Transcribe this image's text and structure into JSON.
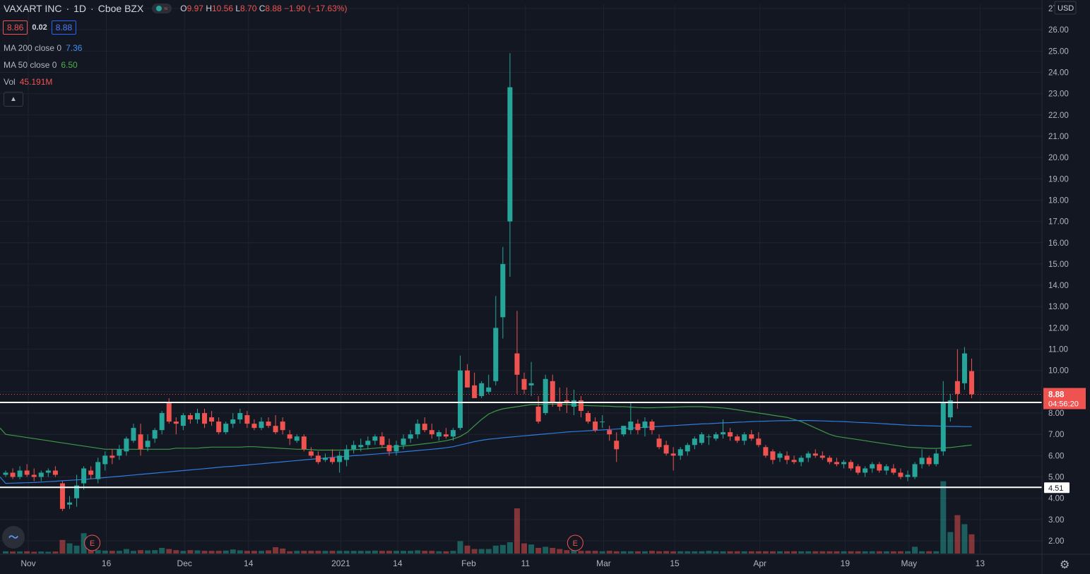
{
  "header": {
    "symbol": "VAXART INC",
    "interval": "1D",
    "exchange": "Cboe BZX",
    "open_label": "O",
    "open": "9.97",
    "high_label": "H",
    "high": "10.56",
    "low_label": "L",
    "low": "8.70",
    "close_label": "C",
    "close": "8.88",
    "change": "−1.90 (−17.63%)"
  },
  "quote": {
    "bid": "8.86",
    "spread": "0.02",
    "ask": "8.88"
  },
  "indicators": [
    {
      "label": "MA 200 close 0",
      "value": "7.36",
      "color": "#3b8ef0"
    },
    {
      "label": "MA 50 close 0",
      "value": "6.50",
      "color": "#4caf50"
    },
    {
      "label": "Vol",
      "value": "45.191M",
      "color": "#ef5350"
    }
  ],
  "colors": {
    "up": "#26a69a",
    "down": "#ef5350",
    "bg": "#131722",
    "grid": "#1f2330",
    "ma200": "#2f7ce0",
    "ma50": "#3d9a45"
  },
  "chart_data": {
    "type": "candlestick",
    "currency": "USD",
    "ylim": [
      1.5,
      27
    ],
    "y_ticks": [
      "2.00",
      "3.00",
      "4.00",
      "5.00",
      "6.00",
      "7.00",
      "8.00",
      "9.00",
      "10.00",
      "11.00",
      "12.00",
      "13.00",
      "14.00",
      "15.00",
      "16.00",
      "17.00",
      "18.00",
      "19.00",
      "20.00",
      "21.00",
      "22.00",
      "23.00",
      "24.00",
      "25.00",
      "26.00",
      "27"
    ],
    "x_ticks": [
      {
        "label": "Nov",
        "t": 0
      },
      {
        "label": "16",
        "t": 11
      },
      {
        "label": "Dec",
        "t": 22
      },
      {
        "label": "14",
        "t": 31
      },
      {
        "label": "2021",
        "t": 44
      },
      {
        "label": "14",
        "t": 52
      },
      {
        "label": "Feb",
        "t": 62
      },
      {
        "label": "11",
        "t": 70
      },
      {
        "label": "Mar",
        "t": 81
      },
      {
        "label": "15",
        "t": 91
      },
      {
        "label": "Apr",
        "t": 103
      },
      {
        "label": "19",
        "t": 115
      },
      {
        "label": "May",
        "t": 124
      },
      {
        "label": "13",
        "t": 134
      }
    ],
    "last_price": "8.88",
    "countdown": "04:56:20",
    "horizontal_levels": [
      "8.50",
      "4.51"
    ],
    "earnings_markers": [
      {
        "label": "E",
        "t": 11
      },
      {
        "label": "E",
        "t": 79
      }
    ],
    "candles": [
      [
        5.1,
        5.3,
        5.0,
        5.2
      ],
      [
        5.2,
        5.4,
        4.9,
        5.0
      ],
      [
        5.0,
        5.5,
        4.9,
        5.3
      ],
      [
        5.3,
        5.6,
        5.0,
        5.1
      ],
      [
        5.1,
        5.4,
        4.8,
        5.0
      ],
      [
        5.0,
        5.3,
        4.8,
        5.2
      ],
      [
        5.2,
        5.4,
        5.0,
        5.3
      ],
      [
        5.3,
        5.5,
        5.0,
        5.1
      ],
      [
        4.7,
        4.8,
        3.4,
        3.5
      ],
      [
        3.7,
        4.1,
        3.5,
        3.8
      ],
      [
        4.0,
        5.1,
        3.6,
        4.6
      ],
      [
        4.7,
        5.5,
        4.4,
        5.4
      ],
      [
        5.3,
        5.5,
        4.9,
        5.1
      ],
      [
        4.9,
        5.9,
        4.7,
        5.7
      ],
      [
        5.6,
        6.2,
        5.3,
        6.0
      ],
      [
        6.0,
        6.3,
        5.6,
        5.9
      ],
      [
        6.0,
        6.5,
        5.8,
        6.3
      ],
      [
        6.2,
        6.9,
        6.0,
        6.8
      ],
      [
        6.7,
        7.5,
        6.6,
        7.3
      ],
      [
        7.0,
        7.5,
        6.0,
        6.3
      ],
      [
        6.4,
        7.0,
        6.2,
        6.7
      ],
      [
        6.8,
        7.3,
        6.6,
        7.2
      ],
      [
        7.2,
        8.1,
        7.0,
        8.0
      ],
      [
        8.5,
        8.7,
        7.5,
        7.6
      ],
      [
        7.6,
        7.8,
        7.0,
        7.5
      ],
      [
        7.4,
        8.0,
        7.2,
        7.9
      ],
      [
        7.9,
        8.0,
        7.5,
        7.7
      ],
      [
        7.7,
        8.2,
        7.5,
        8.0
      ],
      [
        8.0,
        8.2,
        7.3,
        7.5
      ],
      [
        7.8,
        8.1,
        7.4,
        7.6
      ],
      [
        7.6,
        7.8,
        7.0,
        7.1
      ],
      [
        7.1,
        7.6,
        7.0,
        7.5
      ],
      [
        7.5,
        8.0,
        7.3,
        7.7
      ],
      [
        7.7,
        8.2,
        7.5,
        8.0
      ],
      [
        7.9,
        8.1,
        7.3,
        7.5
      ],
      [
        7.5,
        7.7,
        7.2,
        7.3
      ],
      [
        7.3,
        7.8,
        7.2,
        7.6
      ],
      [
        7.6,
        7.8,
        7.3,
        7.4
      ],
      [
        7.4,
        7.9,
        7.0,
        7.1
      ],
      [
        7.6,
        7.8,
        7.0,
        7.2
      ],
      [
        7.0,
        7.2,
        6.5,
        6.8
      ],
      [
        6.7,
        7.0,
        6.6,
        6.9
      ],
      [
        6.9,
        7.0,
        6.2,
        6.3
      ],
      [
        6.2,
        6.4,
        5.9,
        6.0
      ],
      [
        6.0,
        6.2,
        5.6,
        5.7
      ],
      [
        5.8,
        6.1,
        5.7,
        5.9
      ],
      [
        5.9,
        6.3,
        5.6,
        5.7
      ],
      [
        5.7,
        6.2,
        5.2,
        6.0
      ],
      [
        5.8,
        6.5,
        5.5,
        6.3
      ],
      [
        6.3,
        6.7,
        6.1,
        6.5
      ],
      [
        6.4,
        6.8,
        6.2,
        6.5
      ],
      [
        6.5,
        6.9,
        6.3,
        6.7
      ],
      [
        6.7,
        7.0,
        6.5,
        6.9
      ],
      [
        6.9,
        7.1,
        6.4,
        6.5
      ],
      [
        6.5,
        6.8,
        6.0,
        6.2
      ],
      [
        6.2,
        6.7,
        6.0,
        6.5
      ],
      [
        6.5,
        7.0,
        6.3,
        6.8
      ],
      [
        6.8,
        7.2,
        6.6,
        7.0
      ],
      [
        7.0,
        7.7,
        6.8,
        7.5
      ],
      [
        7.5,
        7.8,
        7.1,
        7.2
      ],
      [
        7.2,
        7.5,
        6.8,
        7.0
      ],
      [
        6.9,
        7.2,
        6.7,
        7.1
      ],
      [
        7.0,
        7.3,
        6.8,
        6.9
      ],
      [
        6.9,
        7.3,
        6.7,
        7.2
      ],
      [
        7.3,
        10.7,
        7.2,
        10.0
      ],
      [
        10.0,
        10.3,
        9.2,
        9.2
      ],
      [
        9.3,
        9.9,
        8.8,
        8.7
      ],
      [
        8.8,
        9.5,
        8.7,
        9.4
      ],
      [
        9.0,
        9.8,
        8.9,
        9.2
      ],
      [
        9.5,
        13.5,
        9.3,
        12.0
      ],
      [
        12.5,
        15.8,
        11.5,
        15.0
      ],
      [
        17.0,
        24.9,
        14.4,
        23.3
      ],
      [
        10.8,
        12.8,
        8.9,
        9.8
      ],
      [
        9.6,
        9.9,
        8.9,
        9.1
      ],
      [
        9.3,
        10.4,
        8.8,
        9.4
      ],
      [
        8.3,
        8.8,
        7.5,
        7.6
      ],
      [
        8.0,
        9.8,
        7.9,
        9.6
      ],
      [
        9.5,
        9.8,
        8.3,
        8.5
      ],
      [
        8.5,
        9.2,
        8.1,
        8.3
      ],
      [
        8.6,
        9.2,
        8.0,
        8.5
      ],
      [
        8.3,
        9.1,
        7.9,
        8.6
      ],
      [
        8.6,
        8.8,
        7.8,
        8.1
      ],
      [
        8.0,
        8.1,
        7.5,
        7.6
      ],
      [
        7.6,
        7.8,
        7.1,
        7.2
      ],
      [
        7.6,
        7.9,
        7.3,
        7.6
      ],
      [
        7.2,
        7.4,
        6.7,
        7.0
      ],
      [
        6.7,
        7.1,
        5.7,
        6.3
      ],
      [
        7.0,
        7.4,
        6.9,
        7.4
      ],
      [
        7.2,
        8.5,
        7.0,
        7.6
      ],
      [
        7.5,
        7.7,
        7.0,
        7.2
      ],
      [
        7.3,
        7.8,
        6.9,
        7.6
      ],
      [
        7.6,
        7.7,
        7.0,
        7.2
      ],
      [
        6.8,
        7.0,
        6.3,
        6.4
      ],
      [
        6.5,
        6.7,
        6.0,
        6.1
      ],
      [
        6.1,
        6.4,
        5.3,
        6.0
      ],
      [
        6.0,
        6.4,
        5.8,
        6.3
      ],
      [
        6.2,
        6.6,
        6.0,
        6.5
      ],
      [
        6.5,
        6.9,
        6.3,
        6.8
      ],
      [
        6.6,
        7.1,
        6.5,
        7.0
      ],
      [
        6.9,
        7.0,
        6.5,
        6.9
      ],
      [
        6.8,
        7.1,
        6.7,
        7.0
      ],
      [
        7.0,
        7.7,
        6.8,
        7.1
      ],
      [
        7.1,
        7.3,
        6.7,
        6.9
      ],
      [
        6.9,
        7.0,
        6.6,
        6.7
      ],
      [
        6.7,
        7.1,
        6.5,
        7.0
      ],
      [
        7.0,
        7.2,
        6.7,
        6.8
      ],
      [
        6.8,
        7.1,
        6.4,
        6.5
      ],
      [
        6.4,
        6.5,
        5.9,
        6.0
      ],
      [
        6.2,
        6.3,
        5.6,
        5.8
      ],
      [
        5.9,
        6.2,
        5.7,
        6.1
      ],
      [
        6.0,
        6.2,
        5.6,
        5.8
      ],
      [
        5.8,
        6.0,
        5.6,
        5.7
      ],
      [
        5.7,
        6.0,
        5.5,
        5.9
      ],
      [
        5.9,
        6.2,
        5.7,
        6.1
      ],
      [
        6.1,
        6.3,
        5.9,
        6.0
      ],
      [
        6.0,
        6.2,
        5.8,
        5.9
      ],
      [
        5.9,
        6.0,
        5.6,
        5.7
      ],
      [
        5.7,
        5.9,
        5.5,
        5.6
      ],
      [
        5.6,
        5.8,
        5.4,
        5.7
      ],
      [
        5.7,
        5.8,
        5.3,
        5.4
      ],
      [
        5.5,
        5.6,
        5.1,
        5.2
      ],
      [
        5.2,
        5.5,
        5.0,
        5.4
      ],
      [
        5.4,
        5.7,
        5.2,
        5.6
      ],
      [
        5.6,
        5.7,
        5.2,
        5.3
      ],
      [
        5.3,
        5.6,
        5.1,
        5.5
      ],
      [
        5.4,
        5.6,
        5.1,
        5.2
      ],
      [
        5.2,
        5.4,
        4.9,
        5.0
      ],
      [
        5.0,
        5.3,
        4.8,
        5.1
      ],
      [
        5.0,
        5.7,
        4.9,
        5.6
      ],
      [
        5.6,
        6.3,
        5.4,
        5.9
      ],
      [
        5.9,
        6.0,
        5.5,
        5.6
      ],
      [
        5.6,
        6.3,
        5.5,
        6.1
      ],
      [
        6.2,
        9.5,
        6.0,
        8.5
      ],
      [
        7.8,
        8.9,
        7.6,
        8.6
      ],
      [
        9.5,
        11.0,
        8.2,
        8.9
      ],
      [
        9.4,
        11.1,
        9.1,
        10.8
      ],
      [
        9.97,
        10.56,
        8.7,
        8.88
      ]
    ],
    "volume_rel": [
      0.1,
      0.09,
      0.09,
      0.1,
      0.08,
      0.09,
      0.08,
      0.09,
      0.6,
      0.45,
      0.35,
      0.9,
      0.25,
      0.15,
      0.13,
      0.12,
      0.12,
      0.2,
      0.12,
      0.15,
      0.14,
      0.15,
      0.25,
      0.2,
      0.15,
      0.12,
      0.15,
      0.14,
      0.12,
      0.12,
      0.12,
      0.13,
      0.18,
      0.14,
      0.12,
      0.12,
      0.12,
      0.14,
      0.28,
      0.22,
      0.1,
      0.12,
      0.12,
      0.12,
      0.12,
      0.12,
      0.12,
      0.12,
      0.12,
      0.12,
      0.12,
      0.12,
      0.13,
      0.12,
      0.12,
      0.12,
      0.12,
      0.12,
      0.14,
      0.12,
      0.12,
      0.1,
      0.1,
      0.12,
      0.55,
      0.35,
      0.2,
      0.2,
      0.2,
      0.35,
      0.38,
      0.5,
      2.0,
      0.45,
      0.4,
      0.25,
      0.3,
      0.25,
      0.2,
      0.15,
      0.15,
      0.12,
      0.12,
      0.12,
      0.1,
      0.12,
      0.1,
      0.1,
      0.1,
      0.1,
      0.1,
      0.12,
      0.1,
      0.11,
      0.1,
      0.1,
      0.1,
      0.1,
      0.1,
      0.12,
      0.1,
      0.1,
      0.1,
      0.1,
      0.1,
      0.1,
      0.1,
      0.1,
      0.1,
      0.1,
      0.1,
      0.1,
      0.1,
      0.1,
      0.1,
      0.1,
      0.1,
      0.1,
      0.1,
      0.1,
      0.1,
      0.1,
      0.1,
      0.1,
      0.1,
      0.1,
      0.1,
      0.1,
      0.3,
      0.1,
      0.1,
      0.1,
      3.2,
      0.95,
      1.7,
      1.3,
      0.85
    ],
    "ma50": [
      7.0,
      6.95,
      6.9,
      6.85,
      6.8,
      6.75,
      6.7,
      6.65,
      6.6,
      6.55,
      6.5,
      6.45,
      6.4,
      6.35,
      6.3,
      6.3,
      6.3,
      6.3,
      6.3,
      6.3,
      6.3,
      6.3,
      6.3,
      6.3,
      6.35,
      6.35,
      6.35,
      6.35,
      6.38,
      6.4,
      6.4,
      6.4,
      6.4,
      6.4,
      6.42,
      6.42,
      6.4,
      6.38,
      6.36,
      6.34,
      6.32,
      6.3,
      6.3,
      6.28,
      6.26,
      6.26,
      6.26,
      6.26,
      6.26,
      6.28,
      6.3,
      6.32,
      6.35,
      6.38,
      6.4,
      6.42,
      6.45,
      6.48,
      6.52,
      6.56,
      6.6,
      6.65,
      6.7,
      6.78,
      6.9,
      7.1,
      7.4,
      7.7,
      7.95,
      8.1,
      8.2,
      8.25,
      8.3,
      8.35,
      8.4,
      8.4,
      8.42,
      8.42,
      8.42,
      8.4,
      8.38,
      8.36,
      8.35,
      8.34,
      8.33,
      8.32,
      8.3,
      8.3,
      8.28,
      8.26,
      8.25,
      8.25,
      8.26,
      8.27,
      8.28,
      8.29,
      8.3,
      8.3,
      8.3,
      8.28,
      8.26,
      8.24,
      8.2,
      8.15,
      8.1,
      8.05,
      8.0,
      7.95,
      7.9,
      7.85,
      7.8,
      7.7,
      7.6,
      7.45,
      7.3,
      7.15,
      7.0,
      6.9,
      6.85,
      6.8,
      6.75,
      6.7,
      6.65,
      6.6,
      6.55,
      6.5,
      6.45,
      6.4,
      6.38,
      6.36,
      6.34,
      6.34,
      6.36,
      6.38,
      6.42,
      6.46,
      6.5
    ],
    "ma200": [
      4.7,
      4.71,
      4.72,
      4.73,
      4.74,
      4.76,
      4.78,
      4.8,
      4.82,
      4.84,
      4.86,
      4.88,
      4.91,
      4.94,
      4.97,
      5.0,
      5.03,
      5.06,
      5.09,
      5.12,
      5.15,
      5.18,
      5.21,
      5.24,
      5.27,
      5.3,
      5.33,
      5.36,
      5.39,
      5.42,
      5.45,
      5.48,
      5.5,
      5.53,
      5.56,
      5.59,
      5.62,
      5.65,
      5.68,
      5.71,
      5.74,
      5.77,
      5.8,
      5.83,
      5.86,
      5.89,
      5.92,
      5.95,
      5.97,
      6.0,
      6.02,
      6.05,
      6.07,
      6.1,
      6.12,
      6.15,
      6.18,
      6.21,
      6.24,
      6.27,
      6.3,
      6.33,
      6.37,
      6.42,
      6.5,
      6.58,
      6.66,
      6.72,
      6.77,
      6.8,
      6.84,
      6.87,
      6.9,
      6.93,
      6.96,
      6.99,
      7.02,
      7.05,
      7.08,
      7.11,
      7.13,
      7.15,
      7.17,
      7.19,
      7.21,
      7.23,
      7.25,
      7.27,
      7.29,
      7.31,
      7.33,
      7.35,
      7.37,
      7.39,
      7.41,
      7.43,
      7.45,
      7.47,
      7.49,
      7.5,
      7.52,
      7.54,
      7.55,
      7.57,
      7.58,
      7.6,
      7.61,
      7.62,
      7.63,
      7.64,
      7.64,
      7.65,
      7.65,
      7.65,
      7.64,
      7.63,
      7.62,
      7.61,
      7.6,
      7.58,
      7.56,
      7.55,
      7.53,
      7.51,
      7.49,
      7.47,
      7.45,
      7.43,
      7.42,
      7.41,
      7.4,
      7.39,
      7.38,
      7.37,
      7.37,
      7.36,
      7.36
    ]
  }
}
